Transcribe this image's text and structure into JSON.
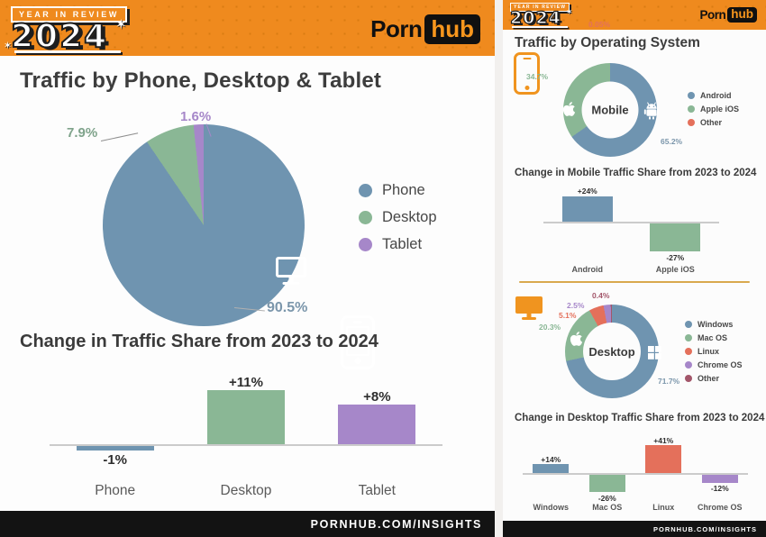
{
  "ui": {
    "badge": "YEAR IN REVIEW",
    "year": "2024",
    "logo": {
      "porn": "Porn",
      "hub": "hub"
    },
    "footer": "PORNHUB.COM/INSIGHTS",
    "left": {
      "title": "Traffic by Phone, Desktop & Tablet"
    },
    "right": {
      "title": "Traffic by Operating System"
    }
  },
  "colors": {
    "header_orange": "#ef8a1e",
    "icon_orange": "#f0941f",
    "blue": "#6f94b0",
    "green": "#8ab795",
    "purple": "#a687c9",
    "red": "#e4705b",
    "maroon": "#a3566a",
    "divider_gold": "#d9a94e",
    "footer_black": "#131313"
  },
  "chart_data": [
    {
      "id": "device_traffic_share",
      "type": "pie",
      "title": "Traffic by Phone, Desktop & Tablet",
      "legend_position": "right",
      "slices": [
        {
          "label": "Phone",
          "value": 90.5,
          "pct_label": "90.5%",
          "color": "#6f94b0"
        },
        {
          "label": "Desktop",
          "value": 7.9,
          "pct_label": "7.9%",
          "color": "#8ab795"
        },
        {
          "label": "Tablet",
          "value": 1.6,
          "pct_label": "1.6%",
          "color": "#a687c9"
        }
      ]
    },
    {
      "id": "device_traffic_change",
      "type": "bar",
      "title": "Change in Traffic Share from 2023 to 2024",
      "categories": [
        "Phone",
        "Desktop",
        "Tablet"
      ],
      "values": [
        -1,
        11,
        8
      ],
      "value_labels": [
        "-1%",
        "+11%",
        "+8%"
      ],
      "colors": [
        "#6f94b0",
        "#8ab795",
        "#a687c9"
      ],
      "ylim": [
        -5,
        13
      ],
      "grid": false
    },
    {
      "id": "mobile_os_share",
      "type": "donut",
      "center_label": "Mobile",
      "slices": [
        {
          "label": "Android",
          "value": 65.2,
          "pct_label": "65.2%",
          "color": "#6f94b0"
        },
        {
          "label": "Apple iOS",
          "value": 34.7,
          "pct_label": "34.7%",
          "color": "#8ab795"
        },
        {
          "label": "Other",
          "value": 0.05,
          "pct_label": "0.05%",
          "color": "#e4705b"
        }
      ]
    },
    {
      "id": "mobile_os_change",
      "type": "bar",
      "title": "Change in Mobile Traffic Share from 2023 to 2024",
      "categories": [
        "Android",
        "Apple iOS"
      ],
      "values": [
        24,
        -27
      ],
      "value_labels": [
        "+24%",
        "-27%"
      ],
      "colors": [
        "#6f94b0",
        "#8ab795"
      ],
      "ylim": [
        -30,
        30
      ],
      "grid": false
    },
    {
      "id": "desktop_os_share",
      "type": "donut",
      "center_label": "Desktop",
      "slices": [
        {
          "label": "Windows",
          "value": 71.7,
          "pct_label": "71.7%",
          "color": "#6f94b0"
        },
        {
          "label": "Mac OS",
          "value": 20.3,
          "pct_label": "20.3%",
          "color": "#8ab795"
        },
        {
          "label": "Linux",
          "value": 5.1,
          "pct_label": "5.1%",
          "color": "#e4705b"
        },
        {
          "label": "Chrome OS",
          "value": 2.5,
          "pct_label": "2.5%",
          "color": "#a687c9"
        },
        {
          "label": "Other",
          "value": 0.4,
          "pct_label": "0.4%",
          "color": "#a3566a"
        }
      ]
    },
    {
      "id": "desktop_os_change",
      "type": "bar",
      "title": "Change in Desktop Traffic Share from 2023 to 2024",
      "categories": [
        "Windows",
        "Mac OS",
        "Linux",
        "Chrome OS"
      ],
      "values": [
        14,
        -26,
        41,
        -12
      ],
      "value_labels": [
        "+14%",
        "-26%",
        "+41%",
        "-12%"
      ],
      "colors": [
        "#6f94b0",
        "#8ab795",
        "#e4705b",
        "#a687c9"
      ],
      "ylim": [
        -30,
        45
      ],
      "grid": false
    }
  ]
}
